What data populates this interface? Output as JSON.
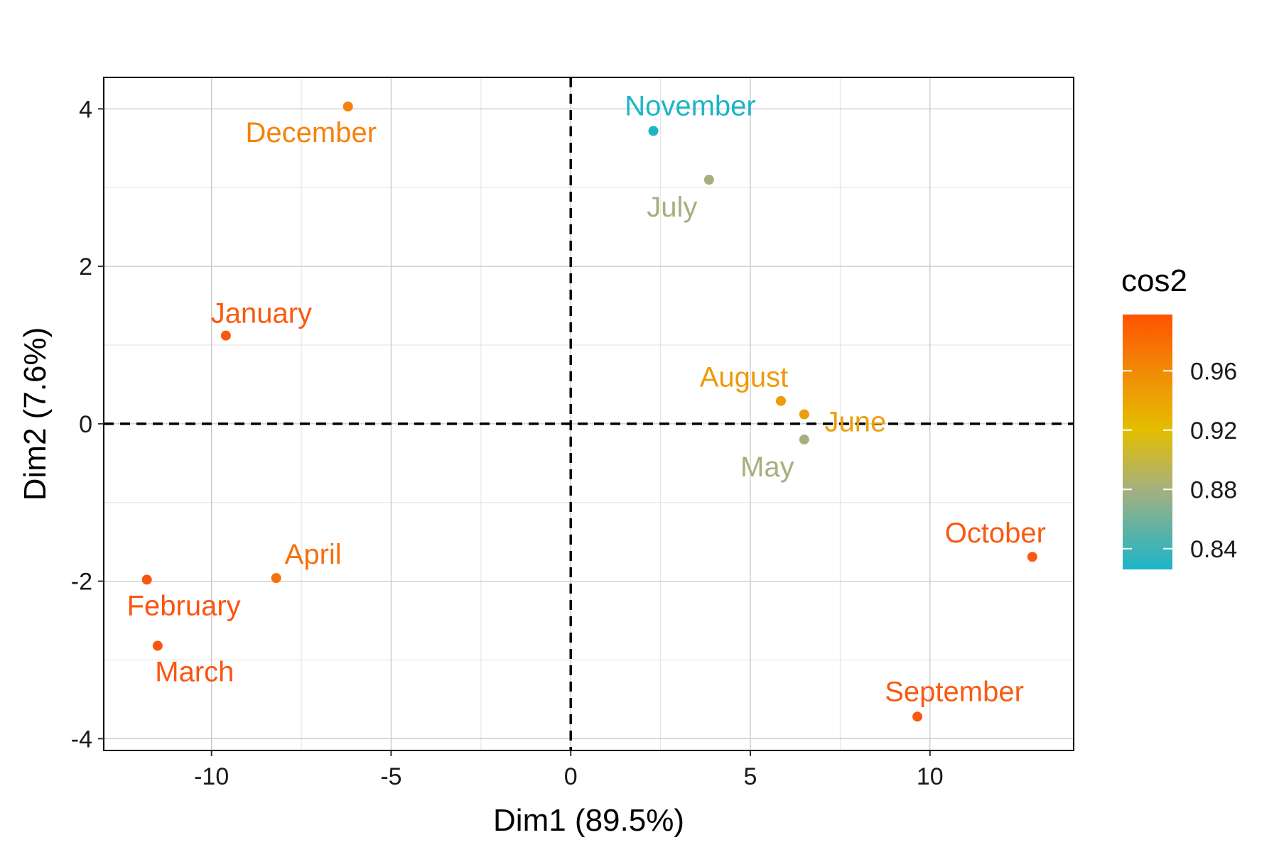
{
  "chart_data": {
    "type": "scatter",
    "xlabel": "Dim1 (89.5%)",
    "ylabel": "Dim2 (7.6%)",
    "xlim": [
      -13,
      14
    ],
    "ylim": [
      -4.15,
      4.4
    ],
    "x_ticks": [
      -10,
      -5,
      0,
      5,
      10
    ],
    "x_tick_labels": [
      "-10",
      "-5",
      "0",
      "5",
      "10"
    ],
    "y_ticks": [
      -4,
      -2,
      0,
      2,
      4
    ],
    "y_tick_labels": [
      "-4",
      "-2",
      "0",
      "2",
      "4"
    ],
    "grid": true,
    "reference_lines": [
      {
        "axis": "x",
        "value": 0,
        "style": "dashed"
      },
      {
        "axis": "y",
        "value": 0,
        "style": "dashed"
      }
    ],
    "legend": {
      "title": "cos2",
      "placement": "right",
      "range": [
        0.826,
        0.998
      ],
      "breaks": [
        0.84,
        0.88,
        0.92,
        0.96
      ],
      "break_labels": [
        "0.84",
        "0.88",
        "0.92",
        "0.96"
      ],
      "gradient": [
        {
          "value": 0.826,
          "color": "#1BB5C9"
        },
        {
          "value": 0.88,
          "color": "#A5B07E"
        },
        {
          "value": 0.92,
          "color": "#E3BE00"
        },
        {
          "value": 0.96,
          "color": "#F28A06"
        },
        {
          "value": 0.998,
          "color": "#FF5200"
        }
      ]
    },
    "points": [
      {
        "label": "January",
        "x": -9.6,
        "y": 1.12,
        "cos2": 0.985,
        "color": "#F95A11"
      },
      {
        "label": "February",
        "x": -11.8,
        "y": -1.98,
        "cos2": 0.99,
        "color": "#FA5510"
      },
      {
        "label": "March",
        "x": -11.5,
        "y": -2.82,
        "cos2": 0.99,
        "color": "#FA5510"
      },
      {
        "label": "April",
        "x": -8.2,
        "y": -1.96,
        "cos2": 0.975,
        "color": "#F5700E"
      },
      {
        "label": "May",
        "x": 6.5,
        "y": -0.2,
        "cos2": 0.87,
        "color": "#A5B07E"
      },
      {
        "label": "June",
        "x": 6.5,
        "y": 0.12,
        "cos2": 0.945,
        "color": "#EB9F0A"
      },
      {
        "label": "July",
        "x": 3.85,
        "y": 3.1,
        "cos2": 0.87,
        "color": "#A5B07E"
      },
      {
        "label": "August",
        "x": 5.85,
        "y": 0.29,
        "cos2": 0.95,
        "color": "#EE9A0A"
      },
      {
        "label": "September",
        "x": 9.65,
        "y": -3.72,
        "cos2": 0.985,
        "color": "#F95A11"
      },
      {
        "label": "October",
        "x": 12.85,
        "y": -1.69,
        "cos2": 0.985,
        "color": "#F95A11"
      },
      {
        "label": "November",
        "x": 2.3,
        "y": 3.72,
        "cos2": 0.83,
        "color": "#1BB5C9"
      },
      {
        "label": "December",
        "x": -6.2,
        "y": 4.03,
        "cos2": 0.965,
        "color": "#F5820B"
      }
    ]
  }
}
